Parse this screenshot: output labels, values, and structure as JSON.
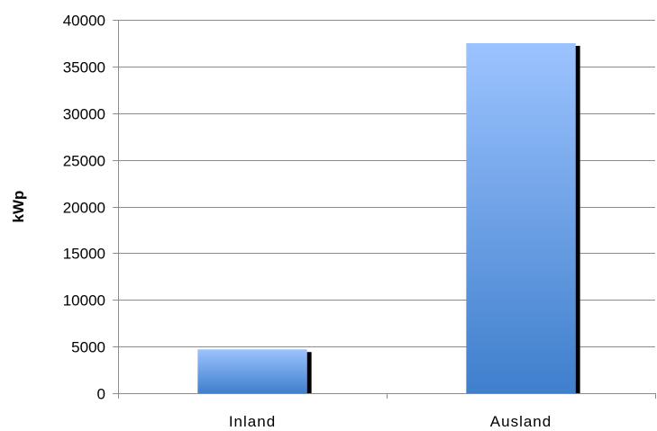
{
  "chart_data": {
    "type": "bar",
    "title": "",
    "xlabel": "",
    "ylabel": "kWp",
    "categories": [
      "Inland",
      "Ausland"
    ],
    "values": [
      4700,
      37500
    ],
    "ylim": [
      0,
      40000
    ],
    "yticks": [
      "0",
      "5000",
      "10000",
      "15000",
      "20000",
      "25000",
      "30000",
      "35000",
      "40000"
    ],
    "grid": true,
    "legend": "none",
    "colors": {
      "bar_top": "#9cc3ff",
      "bar_bottom": "#3f7fcc",
      "bar_shadow": "#000000",
      "grid": "#8c8c8c",
      "axis": "#8c8c8c"
    }
  }
}
